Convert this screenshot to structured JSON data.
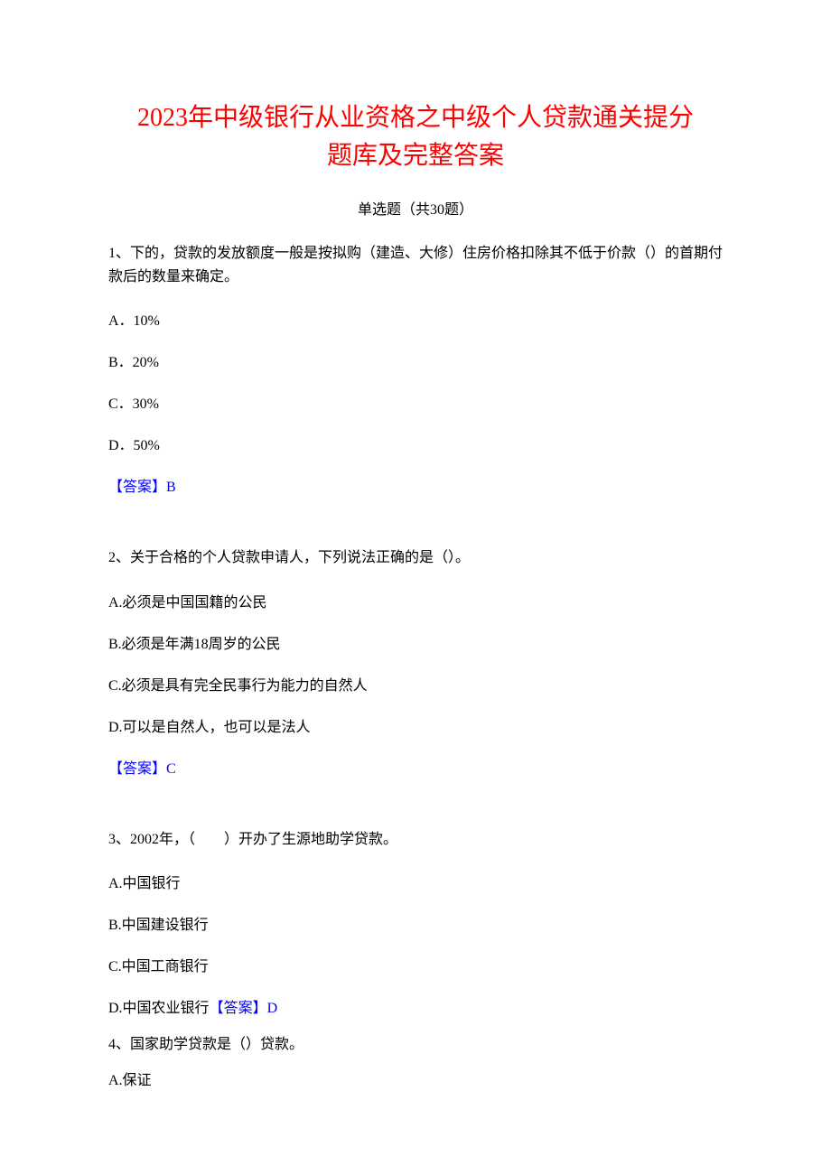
{
  "title_line1": "2023年中级银行从业资格之中级个人贷款通关提分",
  "title_line2": "题库及完整答案",
  "subtitle": "单选题（共30题）",
  "q1": {
    "text": "1、下的，贷款的发放额度一般是按拟购（建造、大修）住房价格扣除其不低于价款（）的首期付款后的数量来确定。",
    "a": "A．10%",
    "b": "B．20%",
    "c": "C．30%",
    "d": "D．50%",
    "answer": "【答案】B"
  },
  "q2": {
    "text": "2、关于合格的个人贷款申请人，下列说法正确的是（）。",
    "a": "A.必须是中国国籍的公民",
    "b": "B.必须是年满18周岁的公民",
    "c": "C.必须是具有完全民事行为能力的自然人",
    "d": "D.可以是自然人，也可以是法人",
    "answer": "【答案】C"
  },
  "q3": {
    "text": "3、2002年，（　　）开办了生源地助学贷款。",
    "a": "A.中国银行",
    "b": "B.中国建设银行",
    "c": "C.中国工商银行",
    "d": "D.中国农业银行",
    "answer": "【答案】D"
  },
  "q4": {
    "text": "4、国家助学贷款是（）贷款。",
    "a": "A.保证"
  }
}
